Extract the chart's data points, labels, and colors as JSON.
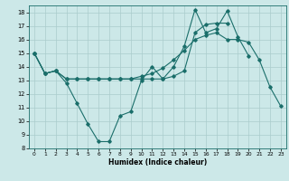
{
  "title": "",
  "xlabel": "Humidex (Indice chaleur)",
  "bg_color": "#cce8e8",
  "grid_color": "#aacccc",
  "line_color": "#1a6e6a",
  "xlim": [
    -0.5,
    23.5
  ],
  "ylim": [
    8,
    18.5
  ],
  "yticks": [
    8,
    9,
    10,
    11,
    12,
    13,
    14,
    15,
    16,
    17,
    18
  ],
  "xticks": [
    0,
    1,
    2,
    3,
    4,
    5,
    6,
    7,
    8,
    9,
    10,
    11,
    12,
    13,
    14,
    15,
    16,
    17,
    18,
    19,
    20,
    21,
    22,
    23
  ],
  "line1_x": [
    0,
    1,
    2,
    3,
    4,
    5,
    6,
    7,
    8,
    9,
    10,
    11,
    12,
    13,
    14,
    15,
    16,
    17,
    18,
    19,
    20,
    21,
    22,
    23
  ],
  "line1_y": [
    15.0,
    13.5,
    13.7,
    13.1,
    13.1,
    13.1,
    13.1,
    13.1,
    13.1,
    13.1,
    13.3,
    13.5,
    13.9,
    14.5,
    15.2,
    16.0,
    16.3,
    16.5,
    16.0,
    16.0,
    15.8,
    14.5,
    12.5,
    11.1
  ],
  "line2_x": [
    0,
    1,
    2,
    3,
    4,
    5,
    6,
    7,
    8,
    9,
    10,
    11,
    12,
    13,
    14,
    15,
    16,
    17,
    18,
    19,
    20
  ],
  "line2_y": [
    15.0,
    13.5,
    13.7,
    12.8,
    11.3,
    9.8,
    8.5,
    8.5,
    10.4,
    10.7,
    13.0,
    14.0,
    13.1,
    14.0,
    15.5,
    18.2,
    16.5,
    16.8,
    18.1,
    16.2,
    14.8
  ],
  "line3_x": [
    0,
    1,
    2,
    3,
    4,
    5,
    6,
    7,
    8,
    9,
    10,
    11,
    12,
    13,
    14,
    15,
    16,
    17,
    18
  ],
  "line3_y": [
    15.0,
    13.5,
    13.7,
    13.1,
    13.1,
    13.1,
    13.1,
    13.1,
    13.1,
    13.1,
    13.1,
    13.1,
    13.1,
    13.3,
    13.7,
    16.5,
    17.1,
    17.2,
    17.2
  ]
}
